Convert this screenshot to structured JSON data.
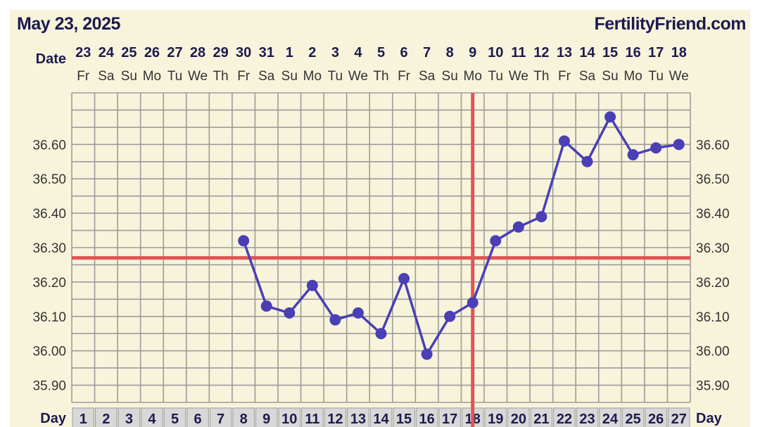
{
  "header": {
    "date": "May 23, 2025",
    "site": "FertilityFriend.com"
  },
  "chart_data": {
    "type": "line",
    "title": "",
    "row_labels": {
      "date": "Date",
      "day": "Day"
    },
    "dates": [
      "23",
      "24",
      "25",
      "26",
      "27",
      "28",
      "29",
      "30",
      "31",
      "1",
      "2",
      "3",
      "4",
      "5",
      "6",
      "7",
      "8",
      "9",
      "10",
      "11",
      "12",
      "13",
      "14",
      "15",
      "16",
      "17",
      "18"
    ],
    "weekdays": [
      "Fr",
      "Sa",
      "Su",
      "Mo",
      "Tu",
      "We",
      "Th",
      "Fr",
      "Sa",
      "Su",
      "Mo",
      "Tu",
      "We",
      "Th",
      "Fr",
      "Sa",
      "Su",
      "Mo",
      "Tu",
      "We",
      "Th",
      "Fr",
      "Sa",
      "Su",
      "Mo",
      "Tu",
      "We"
    ],
    "days": [
      1,
      2,
      3,
      4,
      5,
      6,
      7,
      8,
      9,
      10,
      11,
      12,
      13,
      14,
      15,
      16,
      17,
      18,
      19,
      20,
      21,
      22,
      23,
      24,
      25,
      26,
      27
    ],
    "y_ticks": [
      "36.60",
      "36.50",
      "36.40",
      "36.30",
      "36.20",
      "36.10",
      "36.00",
      "35.90"
    ],
    "ylim": [
      35.85,
      36.75
    ],
    "series": [
      {
        "points": [
          {
            "day": 8,
            "temp": 36.32
          },
          {
            "day": 9,
            "temp": 36.13
          },
          {
            "day": 10,
            "temp": 36.11
          },
          {
            "day": 11,
            "temp": 36.19
          },
          {
            "day": 12,
            "temp": 36.09
          },
          {
            "day": 13,
            "temp": 36.11
          },
          {
            "day": 14,
            "temp": 36.05
          },
          {
            "day": 15,
            "temp": 36.21
          },
          {
            "day": 16,
            "temp": 35.99
          },
          {
            "day": 17,
            "temp": 36.1
          },
          {
            "day": 18,
            "temp": 36.14
          },
          {
            "day": 19,
            "temp": 36.32
          },
          {
            "day": 20,
            "temp": 36.36
          },
          {
            "day": 21,
            "temp": 36.39
          },
          {
            "day": 22,
            "temp": 36.61
          },
          {
            "day": 23,
            "temp": 36.55
          },
          {
            "day": 24,
            "temp": 36.68
          },
          {
            "day": 25,
            "temp": 36.57
          },
          {
            "day": 26,
            "temp": 36.59
          },
          {
            "day": 27,
            "temp": 36.6
          }
        ]
      }
    ],
    "coverline_temp": 36.27,
    "ovulation_day": 18,
    "grid": true,
    "colors": {
      "series": "#4a3fb5",
      "marker": "#4a3fb5",
      "coverline": "#e05555",
      "ovulation": "#e05555",
      "background": "#f8f4dc",
      "grid": "#9b9b9b",
      "text": "#1d1a4f",
      "tick_text": "#333333",
      "day_cell": "#d8d8d8"
    }
  }
}
